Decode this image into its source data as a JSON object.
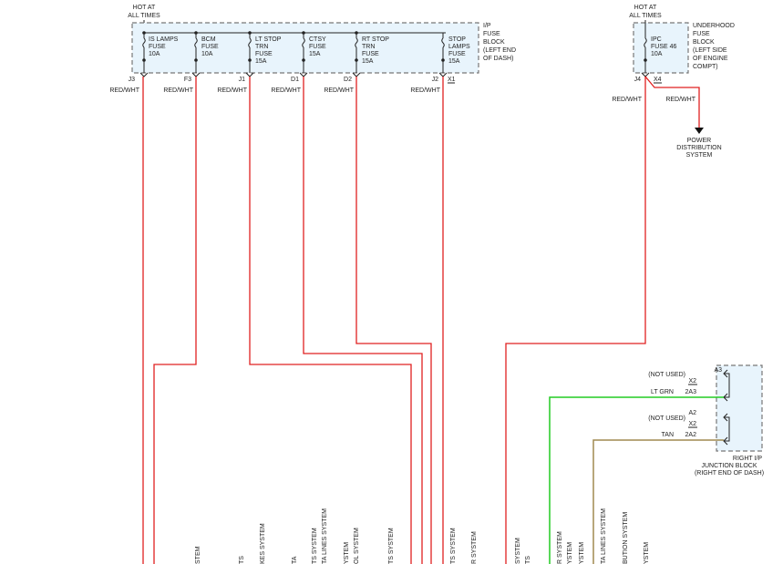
{
  "ip_block": {
    "hot_label": [
      "HOT AT",
      "ALL TIMES"
    ],
    "title": [
      "I/P",
      "FUSE",
      "BLOCK",
      "(LEFT END",
      "OF DASH)"
    ],
    "fuses": [
      {
        "lines": [
          "IS LAMPS",
          "FUSE",
          "10A"
        ],
        "pin": "J3",
        "wire": "RED/WHT"
      },
      {
        "lines": [
          "BCM",
          "FUSE",
          "10A"
        ],
        "pin": "F3",
        "wire": "RED/WHT"
      },
      {
        "lines": [
          "LT STOP",
          "TRN",
          "FUSE",
          "15A"
        ],
        "pin": "J1",
        "wire": "RED/WHT"
      },
      {
        "lines": [
          "CTSY",
          "FUSE",
          "15A"
        ],
        "pin": "D1",
        "wire": "RED/WHT"
      },
      {
        "lines": [
          "RT STOP",
          "TRN",
          "FUSE",
          "15A"
        ],
        "pin": "D2",
        "wire": "RED/WHT"
      },
      {
        "lines": [
          "STOP",
          "LAMPS",
          "FUSE",
          "15A"
        ],
        "pin": "J2",
        "wire": "RED/WHT"
      }
    ],
    "extra_pin": "X1"
  },
  "underhood_block": {
    "hot_label": [
      "HOT AT",
      "ALL TIMES"
    ],
    "title": [
      "UNDERHOOD",
      "FUSE",
      "BLOCK",
      "(LEFT SIDE",
      "OF ENGINE",
      "COMPT)"
    ],
    "fuse": {
      "lines": [
        "IPC",
        "FUSE 46",
        "10A"
      ],
      "pin": "J4",
      "wire": "RED/WHT"
    },
    "output": {
      "pin": "X4",
      "wire": "RED/WHT",
      "dest": [
        "POWER",
        "DISTRIBUTION",
        "SYSTEM"
      ]
    }
  },
  "junction_block": {
    "title": [
      "RIGHT I/P",
      "JUNCTION BLOCK",
      "(RIGHT END OF DASH)"
    ],
    "pins": [
      {
        "pin": "A3",
        "label": "(NOT USED)",
        "conn": "X2"
      },
      {
        "pin": "2A3",
        "label": "LT GRN",
        "conn": ""
      },
      {
        "pin": "A2",
        "label": "(NOT USED)",
        "conn": "X2"
      },
      {
        "pin": "2A2",
        "label": "TAN",
        "conn": ""
      }
    ]
  },
  "system_labels": [
    "STEM",
    "TS",
    "KES SYSTEM",
    "TA",
    "TS SYSTEM",
    "TA LINES SYSTEM",
    "YSTEM",
    "OL SYSTEM",
    "TS SYSTEM",
    "TS SYSTEM",
    "R SYSTEM",
    "SYSTEM",
    "TS",
    "R SYSTEM",
    "YSTEM",
    "YSTEM",
    "TA LINES SYSTEM",
    "BUTION SYSTEM",
    "YSTEM"
  ]
}
